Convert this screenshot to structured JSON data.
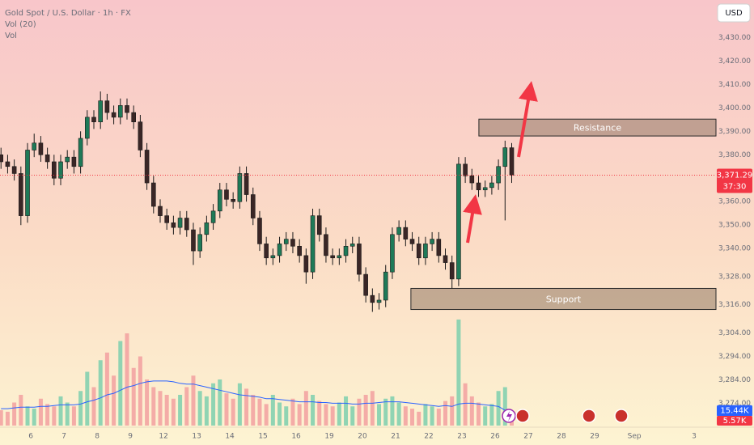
{
  "chart_data": {
    "type": "candlestick",
    "title": "Gold Spot / U.S. Dollar · 1h · FX",
    "indicator_labels": [
      "Vol (20)",
      "Vol"
    ],
    "currency": "USD",
    "up_color": "#1e7a58",
    "down_color": "#3a2626",
    "x": [
      -0.9,
      -0.7,
      -0.5,
      -0.3,
      -0.1,
      0.1,
      0.3,
      0.5,
      0.7,
      0.9,
      1.1,
      1.3,
      1.5,
      1.7,
      1.9,
      2.1,
      2.3,
      2.5,
      2.7,
      2.9,
      3.1,
      3.3,
      3.5,
      3.7,
      3.9,
      4.1,
      4.3,
      4.5,
      4.7,
      4.9,
      5.1,
      5.3,
      5.5,
      5.7,
      5.9,
      6.1,
      6.3,
      6.5,
      6.7,
      6.9,
      7.1,
      7.3,
      7.5,
      7.7,
      7.9,
      8.1,
      8.3,
      8.5,
      8.7,
      8.9,
      9.1,
      9.3,
      9.5,
      9.7,
      9.9,
      10.1,
      10.3,
      10.5,
      10.7,
      10.9,
      11.1,
      11.3,
      11.5,
      11.7,
      11.9,
      12.1,
      12.3,
      12.5,
      12.7,
      12.9,
      13.1,
      13.3,
      13.5,
      13.7,
      13.9,
      14.1,
      14.3,
      14.5
    ],
    "ohlc": [
      [
        3380,
        3383,
        3374,
        3377
      ],
      [
        3377,
        3380,
        3372,
        3375
      ],
      [
        3375,
        3378,
        3369,
        3372
      ],
      [
        3372,
        3375,
        3350,
        3354
      ],
      [
        3354,
        3385,
        3351,
        3382
      ],
      [
        3382,
        3389,
        3379,
        3385
      ],
      [
        3385,
        3388,
        3377,
        3380
      ],
      [
        3380,
        3383,
        3374,
        3377
      ],
      [
        3377,
        3380,
        3367,
        3370
      ],
      [
        3370,
        3380,
        3367,
        3377
      ],
      [
        3377,
        3382,
        3374,
        3379
      ],
      [
        3379,
        3382,
        3372,
        3375
      ],
      [
        3375,
        3390,
        3372,
        3387
      ],
      [
        3387,
        3399,
        3384,
        3396
      ],
      [
        3396,
        3399,
        3391,
        3394
      ],
      [
        3394,
        3407,
        3391,
        3403
      ],
      [
        3403,
        3406,
        3395,
        3398
      ],
      [
        3398,
        3401,
        3393,
        3396
      ],
      [
        3396,
        3404,
        3393,
        3401
      ],
      [
        3401,
        3404,
        3395,
        3398
      ],
      [
        3398,
        3401,
        3391,
        3394
      ],
      [
        3394,
        3397,
        3379,
        3382
      ],
      [
        3382,
        3385,
        3365,
        3368
      ],
      [
        3368,
        3371,
        3355,
        3358
      ],
      [
        3358,
        3361,
        3351,
        3354
      ],
      [
        3354,
        3357,
        3348,
        3351
      ],
      [
        3351,
        3354,
        3346,
        3349
      ],
      [
        3349,
        3356,
        3346,
        3353
      ],
      [
        3353,
        3356,
        3345,
        3348
      ],
      [
        3348,
        3351,
        3333,
        3339
      ],
      [
        3339,
        3349,
        3336,
        3346
      ],
      [
        3346,
        3354,
        3343,
        3351
      ],
      [
        3351,
        3359,
        3348,
        3356
      ],
      [
        3356,
        3368,
        3353,
        3365
      ],
      [
        3365,
        3368,
        3358,
        3361
      ],
      [
        3361,
        3364,
        3357,
        3360
      ],
      [
        3360,
        3375,
        3357,
        3372
      ],
      [
        3372,
        3375,
        3360,
        3363
      ],
      [
        3363,
        3366,
        3350,
        3353
      ],
      [
        3353,
        3356,
        3339,
        3342
      ],
      [
        3342,
        3345,
        3333,
        3336
      ],
      [
        3336,
        3340,
        3333,
        3337
      ],
      [
        3337,
        3345,
        3334,
        3342
      ],
      [
        3342,
        3347,
        3339,
        3344
      ],
      [
        3344,
        3347,
        3338,
        3341
      ],
      [
        3341,
        3344,
        3334,
        3337
      ],
      [
        3337,
        3340,
        3325,
        3330
      ],
      [
        3330,
        3357,
        3327,
        3354
      ],
      [
        3354,
        3357,
        3343,
        3346
      ],
      [
        3346,
        3349,
        3334,
        3337
      ],
      [
        3337,
        3340,
        3333,
        3336
      ],
      [
        3336,
        3340,
        3333,
        3337
      ],
      [
        3337,
        3344,
        3334,
        3341
      ],
      [
        3341,
        3345,
        3338,
        3342
      ],
      [
        3342,
        3345,
        3326,
        3329
      ],
      [
        3329,
        3332,
        3317,
        3320
      ],
      [
        3320,
        3323,
        3313,
        3317
      ],
      [
        3317,
        3321,
        3314,
        3318
      ],
      [
        3318,
        3333,
        3315,
        3330
      ],
      [
        3330,
        3349,
        3327,
        3346
      ],
      [
        3346,
        3352,
        3343,
        3349
      ],
      [
        3349,
        3352,
        3341,
        3344
      ],
      [
        3344,
        3347,
        3339,
        3342
      ],
      [
        3342,
        3345,
        3333,
        3336
      ],
      [
        3336,
        3345,
        3333,
        3342
      ],
      [
        3342,
        3347,
        3339,
        3344
      ],
      [
        3344,
        3347,
        3334,
        3337
      ],
      [
        3337,
        3340,
        3331,
        3334
      ],
      [
        3334,
        3337,
        3323,
        3327
      ],
      [
        3327,
        3379,
        3324,
        3376
      ],
      [
        3376,
        3379,
        3368,
        3371
      ],
      [
        3371,
        3374,
        3365,
        3368
      ],
      [
        3368,
        3371,
        3362,
        3365
      ],
      [
        3365,
        3369,
        3362,
        3366
      ],
      [
        3366,
        3371,
        3363,
        3368
      ],
      [
        3368,
        3378,
        3365,
        3375
      ],
      [
        3375,
        3386,
        3352,
        3383
      ],
      [
        3383,
        3385,
        3368,
        3371.29
      ]
    ],
    "volume": {
      "values": [
        20,
        18,
        30,
        40,
        25,
        22,
        35,
        28,
        25,
        38,
        30,
        25,
        45,
        70,
        50,
        85,
        95,
        65,
        110,
        120,
        75,
        90,
        60,
        50,
        45,
        40,
        35,
        40,
        50,
        65,
        45,
        38,
        55,
        60,
        42,
        35,
        55,
        48,
        40,
        35,
        28,
        40,
        30,
        25,
        35,
        28,
        45,
        40,
        32,
        28,
        25,
        30,
        38,
        25,
        35,
        40,
        45,
        28,
        35,
        38,
        30,
        25,
        22,
        18,
        28,
        25,
        22,
        32,
        38,
        138,
        55,
        38,
        30,
        25,
        28,
        45,
        50,
        5.57
      ],
      "ylim": [
        0,
        140
      ],
      "up_color": "#7ccfae",
      "down_color": "#f2a0a0",
      "last": {
        "value": 5.57,
        "label": "5.57K"
      }
    },
    "volume_ma": {
      "color": "#2962ff",
      "values": [
        22,
        22,
        23,
        24,
        24,
        24,
        25,
        25,
        26,
        27,
        27,
        27,
        28,
        31,
        33,
        36,
        40,
        42,
        46,
        50,
        52,
        55,
        57,
        58,
        58,
        58,
        57,
        55,
        54,
        54,
        52,
        50,
        48,
        46,
        44,
        42,
        40,
        39,
        38,
        37,
        35,
        35,
        34,
        33,
        32,
        31,
        31,
        31,
        30,
        30,
        29,
        29,
        29,
        28,
        28,
        29,
        29,
        30,
        31,
        31,
        31,
        30,
        29,
        28,
        27,
        26,
        25,
        26,
        25,
        28,
        29,
        29,
        28,
        27,
        26,
        25,
        20,
        15.44
      ],
      "last": {
        "value": 15.44,
        "label": "15.44K"
      }
    },
    "last_price": {
      "value": 3371.29,
      "label": "3,371.29",
      "countdown": "37:30",
      "color": "#f23645"
    },
    "zones": [
      {
        "label": "Resistance",
        "low": 3388,
        "high": 3395.2,
        "x_start": 13.51
      },
      {
        "label": "Support",
        "low": 3314,
        "high": 3323,
        "x_start": 11.46
      }
    ],
    "xlim": [
      -0.93,
      20.66
    ],
    "ylim": [
      3264.5,
      3446
    ],
    "xticks": [
      {
        "value": 0,
        "label": "6"
      },
      {
        "value": 1,
        "label": "7"
      },
      {
        "value": 2,
        "label": "8"
      },
      {
        "value": 3,
        "label": "9"
      },
      {
        "value": 4,
        "label": "12"
      },
      {
        "value": 5,
        "label": "13"
      },
      {
        "value": 6,
        "label": "14"
      },
      {
        "value": 7,
        "label": "15"
      },
      {
        "value": 8,
        "label": "16"
      },
      {
        "value": 9,
        "label": "19"
      },
      {
        "value": 10,
        "label": "20"
      },
      {
        "value": 11,
        "label": "21"
      },
      {
        "value": 12,
        "label": "22"
      },
      {
        "value": 13,
        "label": "23"
      },
      {
        "value": 14,
        "label": "26"
      },
      {
        "value": 15,
        "label": "27"
      },
      {
        "value": 16,
        "label": "28"
      },
      {
        "value": 17,
        "label": "29"
      },
      {
        "value": 18.2,
        "label": "Sep"
      },
      {
        "value": 20,
        "label": "3"
      }
    ],
    "yticks": [
      {
        "value": 3430,
        "label": "3,430.00"
      },
      {
        "value": 3420,
        "label": "3,420.00"
      },
      {
        "value": 3410,
        "label": "3,410.00"
      },
      {
        "value": 3400,
        "label": "3,400.00"
      },
      {
        "value": 3390,
        "label": "3,390.00"
      },
      {
        "value": 3380,
        "label": "3,380.00"
      },
      {
        "value": 3360,
        "label": "3,360.00"
      },
      {
        "value": 3350,
        "label": "3,350.00"
      },
      {
        "value": 3340,
        "label": "3,340.00"
      },
      {
        "value": 3328,
        "label": "3,328.00"
      },
      {
        "value": 3316,
        "label": "3,316.00"
      },
      {
        "value": 3304,
        "label": "3,304.00"
      },
      {
        "value": 3294,
        "label": "3,294.00"
      },
      {
        "value": 3284,
        "label": "3,284.00"
      },
      {
        "value": 3274,
        "label": "3,274.00"
      }
    ]
  }
}
